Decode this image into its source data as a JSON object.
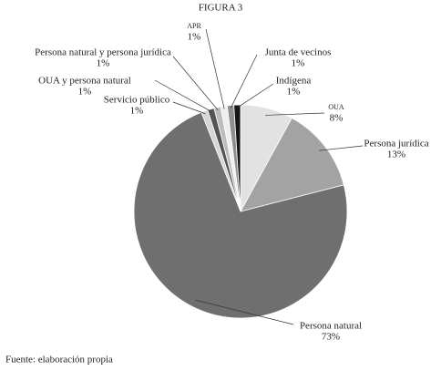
{
  "chart_data": {
    "type": "pie",
    "title": "FIGURA 3",
    "categories": [
      "OUA",
      "Persona jurídica",
      "Persona natural",
      "Servicio público",
      "OUA y persona natural",
      "Persona natural y persona jurídica",
      "APR",
      "Junta de vecinos",
      "Indígena"
    ],
    "values": [
      8,
      13,
      73,
      1,
      1,
      1,
      1,
      1,
      1
    ],
    "value_labels": [
      "8%",
      "13%",
      "73%",
      "1%",
      "1%",
      "1%",
      "1%",
      "1%",
      "1%"
    ],
    "colors": [
      "#e2e2e2",
      "#a3a3a3",
      "#6f6f6f",
      "#d6d6d6",
      "#555555",
      "#bdbdbd",
      "#efefef",
      "#8f8f8f",
      "#151515"
    ],
    "source": "Fuente: elaboración propia"
  }
}
